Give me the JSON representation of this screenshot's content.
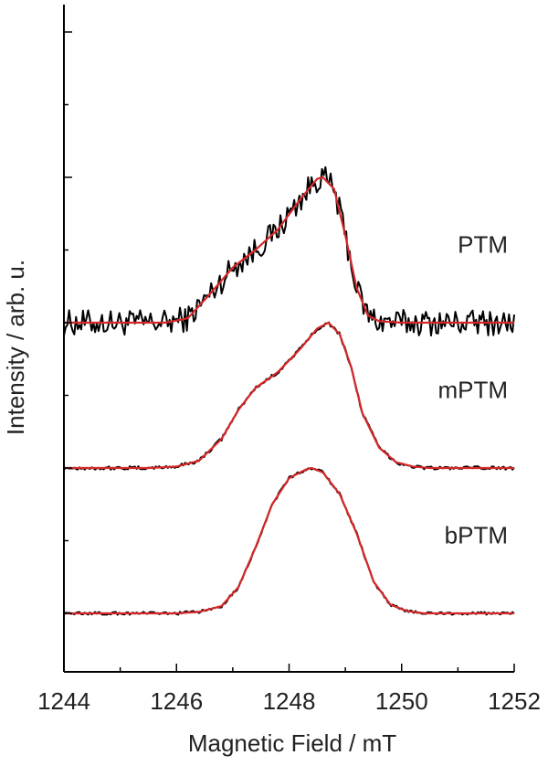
{
  "chart_data": {
    "type": "line",
    "xlabel": "Magnetic Field / mT",
    "ylabel": "Intensity / arb. u.",
    "xlim": [
      1244,
      1252
    ],
    "x_ticks": [
      "1244",
      "1246",
      "1248",
      "1250",
      "1252"
    ],
    "x_tick_values": [
      1244,
      1246,
      1248,
      1250,
      1252
    ],
    "grid": false,
    "legend": "none",
    "colors": {
      "data": "#000000",
      "fit": "#d62728",
      "axis": "#000000"
    },
    "series": [
      {
        "name": "PTM",
        "offset": 2,
        "fit_points": [
          [
            1244,
            0
          ],
          [
            1245.2,
            0
          ],
          [
            1245.8,
            0
          ],
          [
            1246.2,
            0.03
          ],
          [
            1246.6,
            0.2
          ],
          [
            1247,
            0.38
          ],
          [
            1247.4,
            0.5
          ],
          [
            1247.8,
            0.64
          ],
          [
            1248.2,
            0.85
          ],
          [
            1248.5,
            0.99
          ],
          [
            1248.6,
            1.0
          ],
          [
            1248.8,
            0.92
          ],
          [
            1249,
            0.6
          ],
          [
            1249.2,
            0.24
          ],
          [
            1249.4,
            0.05
          ],
          [
            1249.6,
            0.01
          ],
          [
            1250,
            0
          ],
          [
            1252,
            0
          ]
        ],
        "noise_amp": 0.09
      },
      {
        "name": "mPTM",
        "offset": 1,
        "fit_points": [
          [
            1244,
            0
          ],
          [
            1245.5,
            0
          ],
          [
            1246,
            0.01
          ],
          [
            1246.4,
            0.05
          ],
          [
            1246.8,
            0.2
          ],
          [
            1247.1,
            0.4
          ],
          [
            1247.4,
            0.55
          ],
          [
            1247.8,
            0.66
          ],
          [
            1248.2,
            0.82
          ],
          [
            1248.5,
            0.96
          ],
          [
            1248.7,
            1.0
          ],
          [
            1248.9,
            0.92
          ],
          [
            1249.1,
            0.7
          ],
          [
            1249.3,
            0.38
          ],
          [
            1249.6,
            0.14
          ],
          [
            1249.9,
            0.04
          ],
          [
            1250.2,
            0.01
          ],
          [
            1250.5,
            0
          ],
          [
            1252,
            0
          ]
        ],
        "noise_amp": 0.012
      },
      {
        "name": "bPTM",
        "offset": 0,
        "fit_points": [
          [
            1244,
            0
          ],
          [
            1246,
            0
          ],
          [
            1246.4,
            0.01
          ],
          [
            1246.8,
            0.05
          ],
          [
            1247.1,
            0.18
          ],
          [
            1247.4,
            0.45
          ],
          [
            1247.7,
            0.75
          ],
          [
            1248,
            0.93
          ],
          [
            1248.3,
            0.99
          ],
          [
            1248.4,
            1.0
          ],
          [
            1248.6,
            0.97
          ],
          [
            1248.9,
            0.82
          ],
          [
            1249.2,
            0.55
          ],
          [
            1249.5,
            0.22
          ],
          [
            1249.8,
            0.06
          ],
          [
            1250.1,
            0.015
          ],
          [
            1250.4,
            0
          ],
          [
            1252,
            0
          ]
        ],
        "noise_amp": 0.01
      }
    ]
  }
}
